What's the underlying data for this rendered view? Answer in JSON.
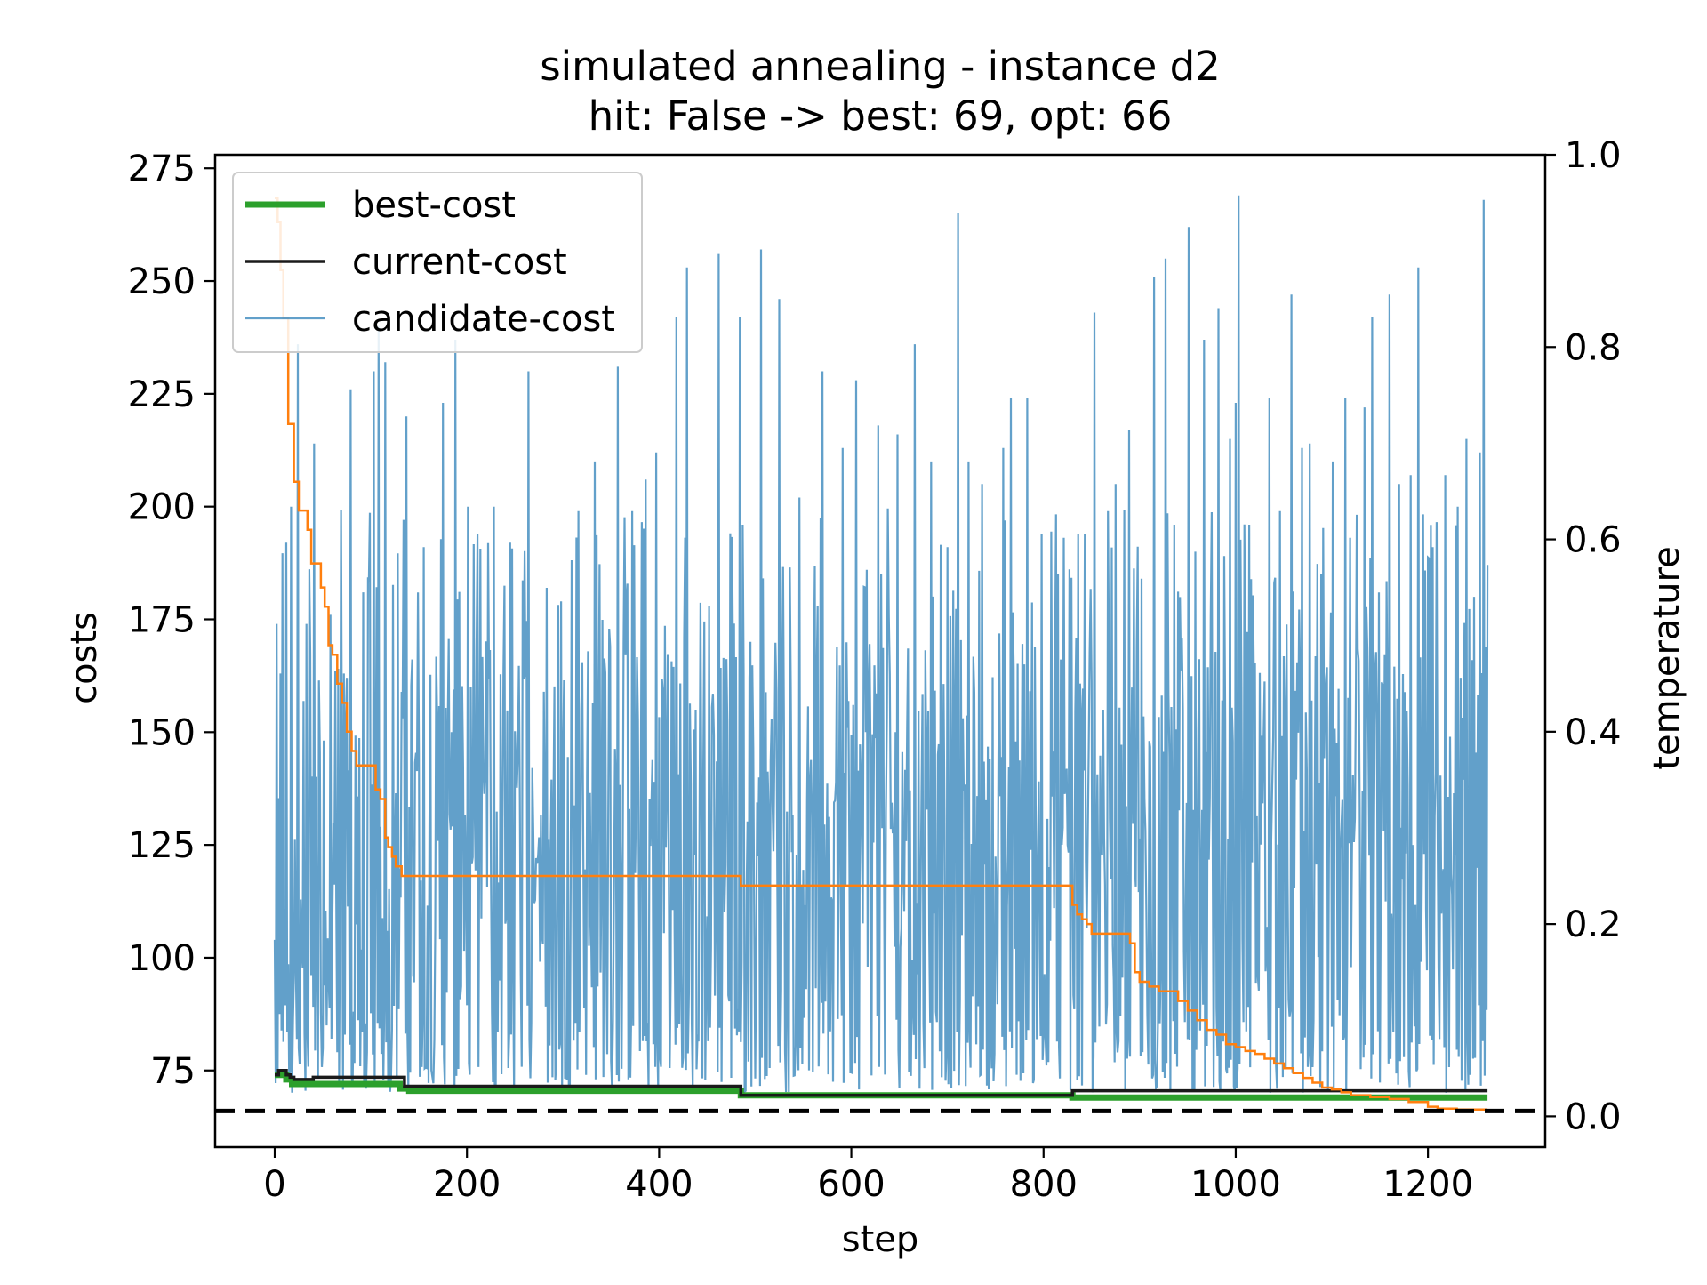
{
  "chart_data": {
    "type": "line",
    "title": "simulated annealing - instance d2",
    "subtitle": "hit: False -> best: 69, opt: 66",
    "xlabel": "step",
    "ylabel": "costs",
    "y2label": "temperature",
    "xlim": [
      -62,
      1322
    ],
    "ylim": [
      58,
      278
    ],
    "y2lim": [
      -0.032,
      1.0
    ],
    "xticks": [
      0,
      200,
      400,
      600,
      800,
      1000,
      1200
    ],
    "yticks": [
      75,
      100,
      125,
      150,
      175,
      200,
      225,
      250,
      275
    ],
    "y2ticks": [
      0.0,
      0.2,
      0.4,
      0.6,
      0.8,
      1.0
    ],
    "xtick_labels": [
      "0",
      "200",
      "400",
      "600",
      "800",
      "1000",
      "1200"
    ],
    "ytick_labels": [
      "75",
      "100",
      "125",
      "150",
      "175",
      "200",
      "225",
      "250",
      "275"
    ],
    "y2tick_labels": [
      "0.0",
      "0.2",
      "0.4",
      "0.6",
      "0.8",
      "1.0"
    ],
    "legend_placement": "top-left",
    "grid": false,
    "opt_line": 66,
    "series": [
      {
        "name": "best-cost",
        "axis": "left",
        "color": "#2ca02c",
        "x": [
          0,
          8,
          12,
          18,
          28,
          130,
          140,
          480,
          485,
          825,
          830,
          1262
        ],
        "y": [
          74,
          74,
          73,
          72,
          72,
          71,
          70.5,
          70.5,
          69.5,
          69.5,
          69,
          69
        ]
      },
      {
        "name": "current-cost",
        "axis": "left",
        "color": "#1a1a1a",
        "x": [
          0,
          4,
          8,
          12,
          16,
          20,
          25,
          40,
          130,
          135,
          480,
          485,
          825,
          830,
          1262
        ],
        "y": [
          74,
          75,
          75,
          74,
          73.5,
          73,
          73,
          73.5,
          73.5,
          71.5,
          71.5,
          69.5,
          69.5,
          70.5,
          70.5
        ]
      },
      {
        "name": "candidate-cost",
        "axis": "left",
        "color": "#1f77b4",
        "x_range": [
          0,
          1262
        ],
        "count": 1263,
        "min": 70,
        "max": 269,
        "peaks": [
          {
            "x": 2,
            "y": 174
          },
          {
            "x": 6,
            "y": 163
          },
          {
            "x": 12,
            "y": 192
          },
          {
            "x": 17,
            "y": 200
          },
          {
            "x": 24,
            "y": 236
          },
          {
            "x": 33,
            "y": 174
          },
          {
            "x": 41,
            "y": 214
          },
          {
            "x": 58,
            "y": 176
          },
          {
            "x": 72,
            "y": 163
          },
          {
            "x": 79,
            "y": 226
          },
          {
            "x": 92,
            "y": 181
          },
          {
            "x": 103,
            "y": 230
          },
          {
            "x": 108,
            "y": 240
          },
          {
            "x": 115,
            "y": 232
          },
          {
            "x": 137,
            "y": 220
          },
          {
            "x": 155,
            "y": 191
          },
          {
            "x": 175,
            "y": 223
          },
          {
            "x": 188,
            "y": 237
          },
          {
            "x": 201,
            "y": 200
          },
          {
            "x": 228,
            "y": 200
          },
          {
            "x": 245,
            "y": 192
          },
          {
            "x": 264,
            "y": 230
          },
          {
            "x": 283,
            "y": 182
          },
          {
            "x": 298,
            "y": 179
          },
          {
            "x": 316,
            "y": 199
          },
          {
            "x": 333,
            "y": 210
          },
          {
            "x": 357,
            "y": 231
          },
          {
            "x": 372,
            "y": 199
          },
          {
            "x": 386,
            "y": 206
          },
          {
            "x": 397,
            "y": 212
          },
          {
            "x": 418,
            "y": 242
          },
          {
            "x": 429,
            "y": 253
          },
          {
            "x": 452,
            "y": 178
          },
          {
            "x": 462,
            "y": 256
          },
          {
            "x": 484,
            "y": 242
          },
          {
            "x": 506,
            "y": 257
          },
          {
            "x": 525,
            "y": 246
          },
          {
            "x": 546,
            "y": 202
          },
          {
            "x": 570,
            "y": 230
          },
          {
            "x": 591,
            "y": 213
          },
          {
            "x": 605,
            "y": 228
          },
          {
            "x": 628,
            "y": 218
          },
          {
            "x": 648,
            "y": 216
          },
          {
            "x": 666,
            "y": 236
          },
          {
            "x": 683,
            "y": 210
          },
          {
            "x": 700,
            "y": 191
          },
          {
            "x": 711,
            "y": 265
          },
          {
            "x": 722,
            "y": 210
          },
          {
            "x": 736,
            "y": 205
          },
          {
            "x": 758,
            "y": 213
          },
          {
            "x": 766,
            "y": 224
          },
          {
            "x": 783,
            "y": 224
          },
          {
            "x": 798,
            "y": 194
          },
          {
            "x": 815,
            "y": 185
          },
          {
            "x": 836,
            "y": 194
          },
          {
            "x": 853,
            "y": 243
          },
          {
            "x": 875,
            "y": 205
          },
          {
            "x": 889,
            "y": 217
          },
          {
            "x": 902,
            "y": 184
          },
          {
            "x": 915,
            "y": 251
          },
          {
            "x": 927,
            "y": 255
          },
          {
            "x": 936,
            "y": 196
          },
          {
            "x": 951,
            "y": 262
          },
          {
            "x": 958,
            "y": 190
          },
          {
            "x": 967,
            "y": 237
          },
          {
            "x": 982,
            "y": 244
          },
          {
            "x": 994,
            "y": 215
          },
          {
            "x": 1000,
            "y": 223
          },
          {
            "x": 1003,
            "y": 269
          },
          {
            "x": 1014,
            "y": 196
          },
          {
            "x": 1035,
            "y": 224
          },
          {
            "x": 1046,
            "y": 199
          },
          {
            "x": 1058,
            "y": 247
          },
          {
            "x": 1069,
            "y": 213
          },
          {
            "x": 1077,
            "y": 214
          },
          {
            "x": 1089,
            "y": 185
          },
          {
            "x": 1101,
            "y": 210
          },
          {
            "x": 1114,
            "y": 224
          },
          {
            "x": 1134,
            "y": 222
          },
          {
            "x": 1142,
            "y": 242
          },
          {
            "x": 1160,
            "y": 247
          },
          {
            "x": 1170,
            "y": 205
          },
          {
            "x": 1182,
            "y": 207
          },
          {
            "x": 1190,
            "y": 253
          },
          {
            "x": 1205,
            "y": 191
          },
          {
            "x": 1218,
            "y": 207
          },
          {
            "x": 1231,
            "y": 200
          },
          {
            "x": 1240,
            "y": 215
          },
          {
            "x": 1248,
            "y": 180
          },
          {
            "x": 1254,
            "y": 212
          },
          {
            "x": 1258,
            "y": 268
          }
        ]
      },
      {
        "name": "temperature",
        "axis": "right",
        "color": "#ff7f0e",
        "x": [
          0,
          3,
          6,
          9,
          14,
          20,
          25,
          30,
          34,
          38,
          43,
          48,
          52,
          56,
          60,
          65,
          70,
          75,
          80,
          85,
          88,
          92,
          100,
          105,
          110,
          115,
          118,
          122,
          126,
          132,
          140,
          300,
          480,
          485,
          700,
          825,
          830,
          835,
          840,
          845,
          850,
          860,
          870,
          880,
          890,
          895,
          900,
          910,
          920,
          930,
          940,
          950,
          960,
          970,
          980,
          990,
          1000,
          1010,
          1020,
          1030,
          1040,
          1050,
          1060,
          1070,
          1080,
          1090,
          1100,
          1110,
          1120,
          1140,
          1160,
          1180,
          1200,
          1210,
          1230,
          1262
        ],
        "y": [
          0.955,
          0.93,
          0.88,
          0.83,
          0.72,
          0.66,
          0.63,
          0.63,
          0.61,
          0.575,
          0.575,
          0.55,
          0.53,
          0.49,
          0.48,
          0.45,
          0.43,
          0.4,
          0.38,
          0.365,
          0.365,
          0.365,
          0.365,
          0.34,
          0.33,
          0.29,
          0.28,
          0.27,
          0.26,
          0.25,
          0.25,
          0.25,
          0.25,
          0.24,
          0.24,
          0.24,
          0.22,
          0.21,
          0.205,
          0.2,
          0.19,
          0.19,
          0.19,
          0.19,
          0.18,
          0.15,
          0.14,
          0.135,
          0.13,
          0.13,
          0.12,
          0.11,
          0.1,
          0.09,
          0.085,
          0.075,
          0.072,
          0.068,
          0.065,
          0.06,
          0.055,
          0.05,
          0.045,
          0.04,
          0.035,
          0.03,
          0.028,
          0.025,
          0.022,
          0.02,
          0.018,
          0.015,
          0.01,
          0.008,
          0.007,
          0.007
        ]
      }
    ]
  }
}
